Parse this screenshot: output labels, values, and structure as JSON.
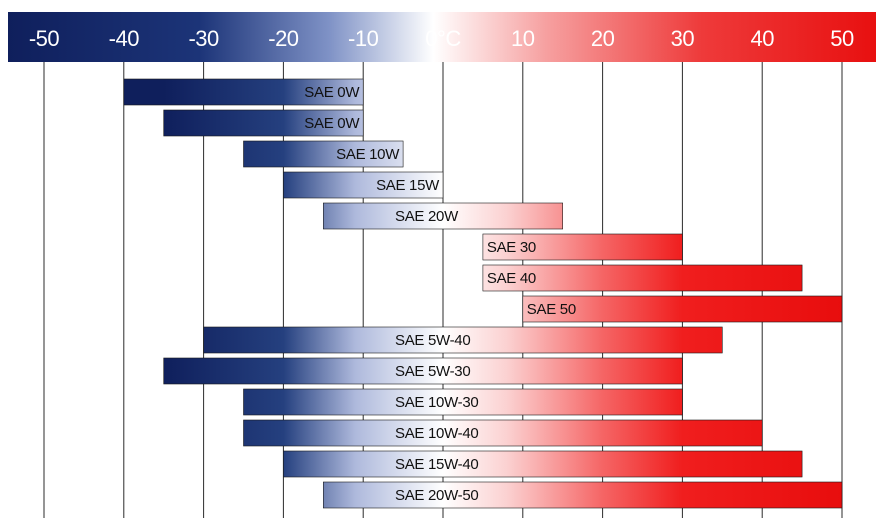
{
  "chart_data": {
    "type": "bar",
    "orientation": "horizontal-range",
    "axis_position": "top",
    "xlim": [
      -50,
      50
    ],
    "x_ticks": [
      -50,
      -40,
      -30,
      -20,
      -10,
      0,
      10,
      20,
      30,
      40,
      50
    ],
    "x_tick_labels": [
      "-50",
      "-40",
      "-30",
      "-20",
      "-10",
      "0°C",
      "10",
      "20",
      "30",
      "40",
      "50"
    ],
    "grid": true,
    "colors": {
      "cold": "#0f1f5c",
      "neutral": "#ffffff",
      "hot": "#f01414"
    },
    "categories": [
      "SAE 0W",
      "SAE 0W",
      "SAE 10W",
      "SAE 15W",
      "SAE 20W",
      "SAE 30",
      "SAE 40",
      "SAE 50",
      "SAE 5W-40",
      "SAE 5W-30",
      "SAE 10W-30",
      "SAE 10W-40",
      "SAE 15W-40",
      "SAE 20W-50"
    ],
    "ranges": [
      [
        -40,
        -10
      ],
      [
        -35,
        -10
      ],
      [
        -25,
        -5
      ],
      [
        -20,
        0
      ],
      [
        -15,
        15
      ],
      [
        5,
        30
      ],
      [
        5,
        45
      ],
      [
        10,
        50
      ],
      [
        -30,
        35
      ],
      [
        -35,
        30
      ],
      [
        -25,
        30
      ],
      [
        -25,
        40
      ],
      [
        -20,
        45
      ],
      [
        -15,
        50
      ]
    ]
  }
}
